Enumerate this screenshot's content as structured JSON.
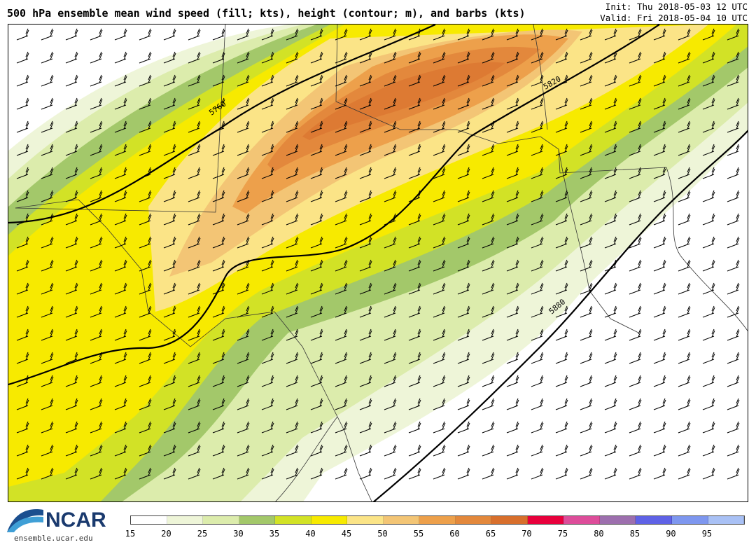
{
  "header": {
    "title": "500 hPa ensemble mean wind speed (fill; kts), height (contour; m), and barbs (kts)",
    "init": "Init: Thu 2018-05-03 12 UTC",
    "valid": "Valid: Fri 2018-05-04 10 UTC"
  },
  "map": {
    "contour_labels": [
      "5760",
      "5820",
      "5880"
    ]
  },
  "colorbar": {
    "ticks": [
      "15",
      "20",
      "25",
      "30",
      "35",
      "40",
      "45",
      "50",
      "55",
      "60",
      "65",
      "70",
      "75",
      "80",
      "85",
      "90",
      "95"
    ],
    "colors": [
      "#ffffff",
      "#eef5d8",
      "#dcecac",
      "#a3c86a",
      "#d2e226",
      "#f7ea00",
      "#fbe487",
      "#f3c575",
      "#eda04b",
      "#e3883c",
      "#d86f2c",
      "#e8003c",
      "#dd4d9a",
      "#9d6fae",
      "#5f62e6",
      "#7e97ef",
      "#a9c1f5"
    ]
  },
  "footer": {
    "brand": "NCAR",
    "url": "ensemble.ucar.edu"
  }
}
